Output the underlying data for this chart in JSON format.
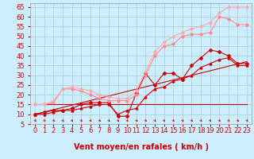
{
  "xlabel": "Vent moyen/en rafales ( km/h )",
  "bg_color": "#cceeff",
  "grid_color": "#aacccc",
  "xlim": [
    -0.5,
    23.5
  ],
  "ylim": [
    5,
    67
  ],
  "yticks": [
    5,
    10,
    15,
    20,
    25,
    30,
    35,
    40,
    45,
    50,
    55,
    60,
    65
  ],
  "xticks": [
    0,
    1,
    2,
    3,
    4,
    5,
    6,
    7,
    8,
    9,
    10,
    11,
    12,
    13,
    14,
    15,
    16,
    17,
    18,
    19,
    20,
    21,
    22,
    23
  ],
  "line1_x": [
    0,
    1,
    2,
    3,
    4,
    5,
    6,
    7,
    8,
    9,
    10,
    11,
    12,
    13,
    14,
    15,
    16,
    17,
    18,
    19,
    20,
    21,
    22,
    23
  ],
  "line1_y": [
    10,
    11,
    12,
    12,
    13,
    15,
    16,
    16,
    16,
    9,
    9,
    21,
    31,
    25,
    31,
    31,
    28,
    35,
    39,
    43,
    42,
    40,
    36,
    36
  ],
  "line1_color": "#cc0000",
  "line2_x": [
    0,
    1,
    2,
    3,
    4,
    5,
    6,
    7,
    8,
    9,
    10,
    11,
    12,
    13,
    14,
    15,
    16,
    17,
    18,
    19,
    20,
    21,
    22,
    23
  ],
  "line2_y": [
    10,
    10,
    11,
    12,
    12,
    13,
    14,
    15,
    15,
    10,
    12,
    13,
    19,
    23,
    24,
    27,
    28,
    30,
    34,
    36,
    38,
    39,
    35,
    35
  ],
  "line2_color": "#cc0000",
  "line3_x": [
    0,
    23
  ],
  "line3_y": [
    10,
    37
  ],
  "line3_color": "#cc0000",
  "line4_x": [
    0,
    1,
    2,
    3,
    4,
    5,
    6,
    7,
    8,
    9,
    10,
    11,
    12,
    13,
    14,
    15,
    16,
    17,
    18,
    19,
    20,
    21,
    22,
    23
  ],
  "line4_y": [
    15,
    15,
    16,
    23,
    23,
    22,
    20,
    18,
    17,
    17,
    17,
    20,
    30,
    40,
    45,
    46,
    50,
    51,
    51,
    52,
    60,
    59,
    56,
    56
  ],
  "line4_color": "#ff8888",
  "line5_x": [
    0,
    1,
    2,
    3,
    4,
    5,
    6,
    7,
    8,
    9,
    10,
    11,
    12,
    13,
    14,
    15,
    16,
    17,
    18,
    19,
    20,
    21,
    22,
    23
  ],
  "line5_y": [
    15,
    15,
    17,
    23,
    24,
    23,
    22,
    20,
    19,
    18,
    18,
    22,
    32,
    42,
    47,
    50,
    52,
    54,
    55,
    57,
    62,
    65,
    65,
    65
  ],
  "line5_color": "#ffaaaa",
  "line6_x": [
    0,
    23
  ],
  "line6_y": [
    15,
    15
  ],
  "line6_color": "#cc0000",
  "xlabel_color": "#cc0000",
  "xlabel_fontsize": 7,
  "tick_fontsize": 6,
  "tick_color": "#cc0000",
  "arrow_color": "#cc0000"
}
